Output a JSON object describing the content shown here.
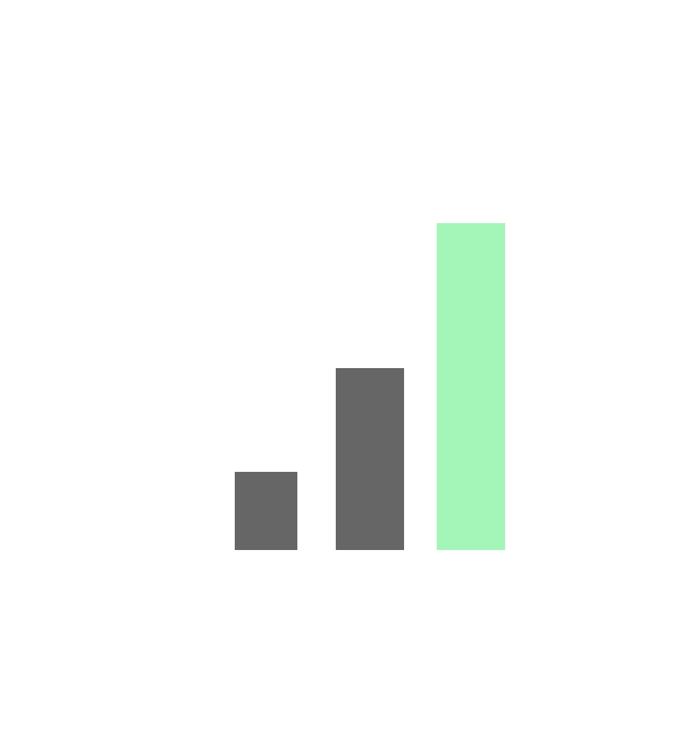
{
  "graphic": {
    "name": "signal-strength-bars-icon",
    "levels": [
      {
        "name": "bar-1",
        "relative_height": 0.239,
        "color": "#666666"
      },
      {
        "name": "bar-2",
        "relative_height": 0.556,
        "color": "#666666"
      },
      {
        "name": "bar-3",
        "relative_height": 1.0,
        "color": "#a3f5b8"
      }
    ],
    "colors": {
      "inactive": "#666666",
      "active": "#a3f5b8",
      "background": "#ffffff"
    }
  }
}
